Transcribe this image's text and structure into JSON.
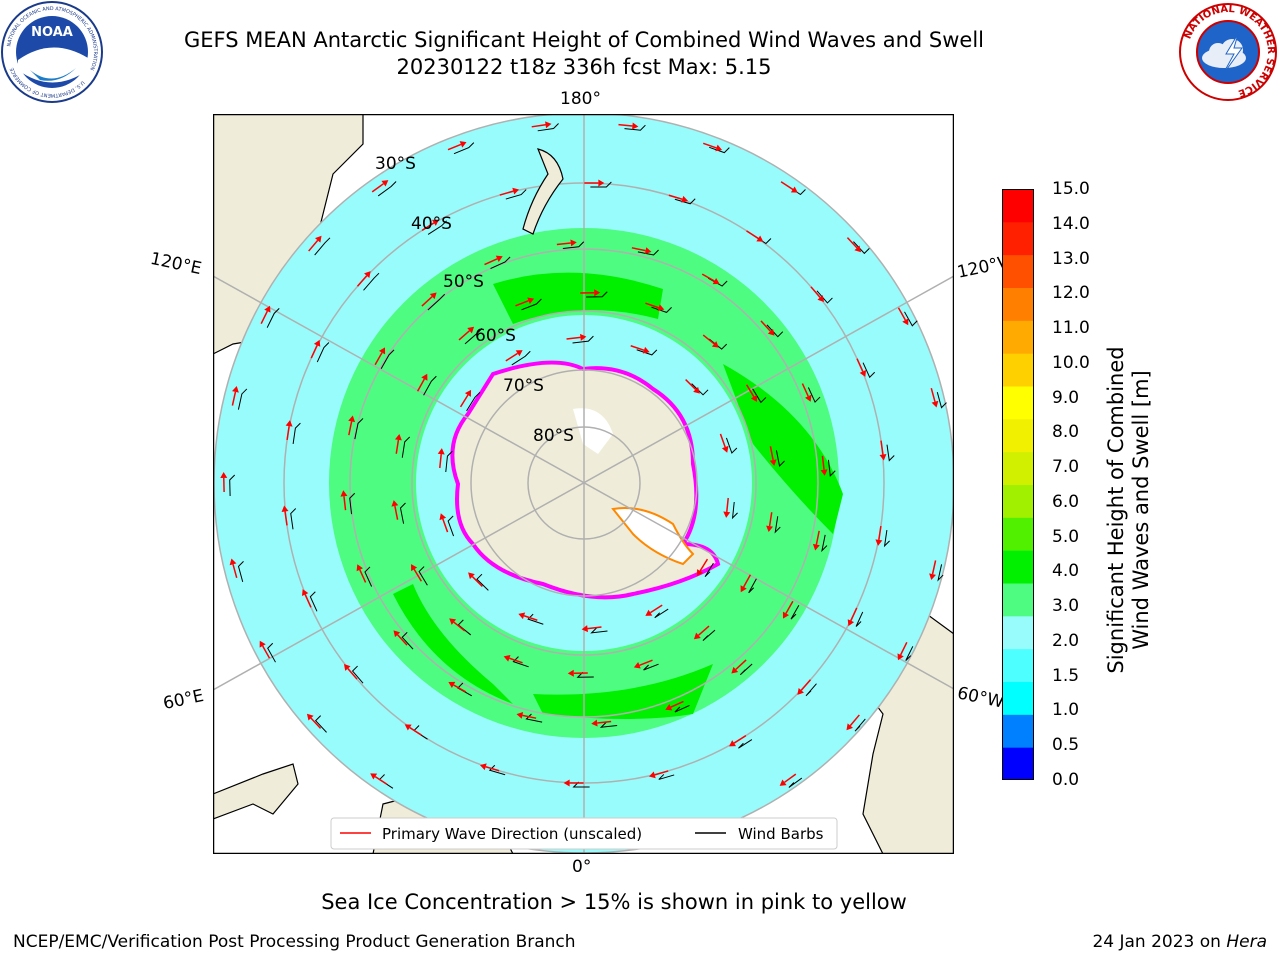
{
  "header": {
    "title_line1": "GEFS MEAN Antarctic Significant Height of Combined Wind Waves and Swell",
    "title_line2": "20230122 t18z 336h fcst   Max: 5.15"
  },
  "logos": {
    "left": {
      "name": "NOAA",
      "ring_text": "NATIONAL OCEANIC AND ATMOSPHERIC ADMINISTRATION",
      "bottom_text": "U.S. DEPARTMENT OF COMMERCE"
    },
    "right": {
      "ring_text": "NATIONAL WEATHER SERVICE"
    }
  },
  "map": {
    "longitude_labels": {
      "top": "180°",
      "bottom": "0°",
      "upper_left": "120°E",
      "upper_right": "120°W",
      "lower_left": "60°E",
      "lower_right": "60°W"
    },
    "latitude_labels": [
      "30°S",
      "40°S",
      "50°S",
      "60°S",
      "70°S",
      "80°S"
    ],
    "legend": {
      "wave_direction": "Primary Wave Direction (unscaled)",
      "wind_barbs": "Wind Barbs"
    },
    "colors": {
      "land": "#efedd9",
      "ocean_low": "#98fcfc",
      "ocean_mid": "#4dfc80",
      "ocean_high": "#00f000",
      "arrow": "#ff0000",
      "sea_ice": "#ff00ff"
    }
  },
  "colorbar": {
    "label_line1": "Significant Height of Combined",
    "label_line2": "Wind Waves and Swell [m]",
    "ticks": [
      "15.0",
      "14.0",
      "13.0",
      "12.0",
      "11.0",
      "10.0",
      "9.0",
      "8.0",
      "7.0",
      "6.0",
      "5.0",
      "4.0",
      "3.0",
      "2.0",
      "1.5",
      "1.0",
      "0.5",
      "0.0"
    ],
    "colors": [
      "#0000ff",
      "#0080ff",
      "#00ffff",
      "#4dffff",
      "#98fcfc",
      "#4dfc80",
      "#00f000",
      "#50f000",
      "#a0f000",
      "#d0f000",
      "#f0f000",
      "#ffff00",
      "#ffd000",
      "#ffaa00",
      "#ff8000",
      "#ff5000",
      "#ff2000",
      "#ff0000"
    ]
  },
  "footer": {
    "note": "Sea Ice Concentration > 15% is shown in pink to yellow",
    "credit": "NCEP/EMC/Verification Post Processing Product Generation Branch",
    "date": "24 Jan 2023 on ",
    "host": "Hera"
  }
}
